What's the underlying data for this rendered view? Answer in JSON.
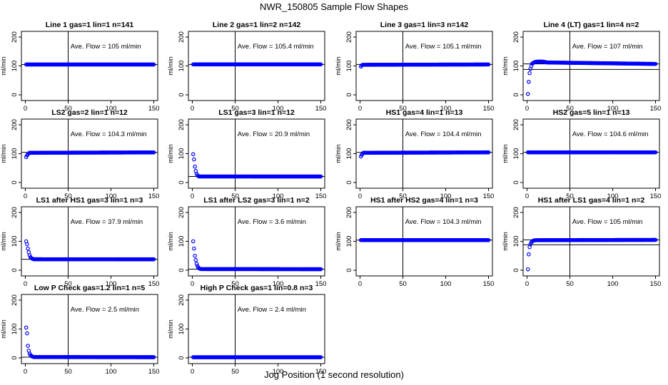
{
  "title": "NWR_150805  Sample Flow Shapes",
  "xlabel": "Jog Position (1 second resolution)",
  "chart_data": [
    {
      "type": "scatter",
      "title": "Line 1 gas=1 lin=1 n=141",
      "ylabel": "ml/min",
      "annotation": "Ave. Flow =  105  ml/min",
      "xlim": [
        0,
        150
      ],
      "ylim": [
        0,
        200
      ],
      "xticks": [
        0,
        50,
        100,
        150
      ],
      "yticks": [
        0,
        100,
        200
      ],
      "vline": 50,
      "hlines": [
        105
      ],
      "color": "#0000ff",
      "series": [
        {
          "x": [
            1,
            150
          ],
          "y": [
            105,
            105
          ]
        }
      ]
    },
    {
      "type": "scatter",
      "title": "Line 2 gas=1 lin=2 n=142",
      "ylabel": "ml/min",
      "annotation": "Ave. Flow =  105.4  ml/min",
      "xlim": [
        0,
        150
      ],
      "ylim": [
        0,
        200
      ],
      "xticks": [
        0,
        50,
        100,
        150
      ],
      "yticks": [
        0,
        100,
        200
      ],
      "vline": 50,
      "hlines": [
        105.4
      ],
      "color": "#0000ff",
      "series": [
        {
          "x": [
            1,
            150
          ],
          "y": [
            105.4,
            105.4
          ]
        }
      ]
    },
    {
      "type": "scatter",
      "title": "Line 3 gas=1 lin=3 n=142",
      "ylabel": "ml/min",
      "annotation": "Ave. Flow =  105.1  ml/min",
      "xlim": [
        0,
        150
      ],
      "ylim": [
        0,
        200
      ],
      "xticks": [
        0,
        50,
        100,
        150
      ],
      "yticks": [
        0,
        100,
        200
      ],
      "vline": 50,
      "hlines": [
        105.1
      ],
      "color": "#0000ff",
      "series": [
        {
          "x": [
            1,
            2,
            3,
            150
          ],
          "y": [
            98,
            102,
            104,
            105.1
          ]
        }
      ]
    },
    {
      "type": "scatter",
      "title": "Line 4 (LT) gas=1 lin=4 n=2",
      "ylabel": "ml/min",
      "annotation": "Ave. Flow =  107  ml/min",
      "xlim": [
        0,
        150
      ],
      "ylim": [
        0,
        200
      ],
      "xticks": [
        0,
        50,
        100,
        150
      ],
      "yticks": [
        0,
        100,
        200
      ],
      "vline": 50,
      "hlines": [
        107,
        88
      ],
      "color": "#0000ff",
      "series": [
        {
          "x": [
            1,
            2,
            3,
            4,
            5,
            6,
            8,
            10,
            12,
            14,
            16,
            18,
            20,
            22,
            24,
            150
          ],
          "y": [
            3,
            45,
            75,
            90,
            100,
            108,
            112,
            114,
            115,
            115,
            115,
            115,
            114,
            113,
            112,
            107
          ]
        }
      ]
    },
    {
      "type": "scatter",
      "title": "LS2 gas=2 lin=1 n=12",
      "ylabel": "ml/min",
      "annotation": "Ave. Flow =  104.3  ml/min",
      "xlim": [
        0,
        150
      ],
      "ylim": [
        0,
        200
      ],
      "xticks": [
        0,
        50,
        100,
        150
      ],
      "yticks": [
        0,
        100,
        200
      ],
      "vline": 50,
      "hlines": [
        104.3
      ],
      "color": "#0000ff",
      "series": [
        {
          "x": [
            1,
            2,
            3,
            4,
            5,
            150
          ],
          "y": [
            88,
            94,
            98,
            101,
            103,
            104.3
          ]
        }
      ]
    },
    {
      "type": "scatter",
      "title": "LS1 gas=3 lin=1 n=12",
      "ylabel": "ml/min",
      "annotation": "Ave. Flow =  20.9  ml/min",
      "xlim": [
        0,
        150
      ],
      "ylim": [
        0,
        200
      ],
      "xticks": [
        0,
        50,
        100,
        150
      ],
      "yticks": [
        0,
        100,
        200
      ],
      "vline": 50,
      "hlines": [
        20.9
      ],
      "color": "#0000ff",
      "series": [
        {
          "x": [
            1,
            2,
            3,
            4,
            5,
            6,
            7,
            8,
            150
          ],
          "y": [
            98,
            80,
            55,
            40,
            30,
            25,
            22,
            21,
            20.9
          ]
        }
      ]
    },
    {
      "type": "scatter",
      "title": "HS1 gas=4 lin=1 n=13",
      "ylabel": "ml/min",
      "annotation": "Ave. Flow =  104.4  ml/min",
      "xlim": [
        0,
        150
      ],
      "ylim": [
        0,
        200
      ],
      "xticks": [
        0,
        50,
        100,
        150
      ],
      "yticks": [
        0,
        100,
        200
      ],
      "vline": 50,
      "hlines": [
        104.4
      ],
      "color": "#0000ff",
      "series": [
        {
          "x": [
            1,
            2,
            3,
            4,
            150
          ],
          "y": [
            90,
            96,
            100,
            103,
            104.4
          ]
        }
      ]
    },
    {
      "type": "scatter",
      "title": "HS2 gas=5 lin=1 n=13",
      "ylabel": "ml/min",
      "annotation": "Ave. Flow =  104.6  ml/min",
      "xlim": [
        0,
        150
      ],
      "ylim": [
        0,
        200
      ],
      "xticks": [
        0,
        50,
        100,
        150
      ],
      "yticks": [
        0,
        100,
        200
      ],
      "vline": 50,
      "hlines": [
        104.6
      ],
      "color": "#0000ff",
      "series": [
        {
          "x": [
            1,
            150
          ],
          "y": [
            104.6,
            104.6
          ]
        }
      ]
    },
    {
      "type": "scatter",
      "title": "LS1 after HS1 gas=3 lin=1 n=3",
      "ylabel": "ml/min",
      "annotation": "Ave. Flow =  37.9  ml/min",
      "xlim": [
        0,
        150
      ],
      "ylim": [
        0,
        200
      ],
      "xticks": [
        0,
        50,
        100,
        150
      ],
      "yticks": [
        0,
        100,
        200
      ],
      "vline": 50,
      "hlines": [
        37.9
      ],
      "color": "#0000ff",
      "series": [
        {
          "x": [
            1,
            2,
            3,
            4,
            5,
            6,
            7,
            8,
            9,
            10,
            150
          ],
          "y": [
            100,
            90,
            75,
            62,
            52,
            45,
            42,
            40,
            39,
            38,
            37.9
          ]
        }
      ]
    },
    {
      "type": "scatter",
      "title": "LS1 after LS2 gas=3 lin=1 n=2",
      "ylabel": "ml/min",
      "annotation": "Ave. Flow =  3.6  ml/min",
      "xlim": [
        0,
        150
      ],
      "ylim": [
        0,
        200
      ],
      "xticks": [
        0,
        50,
        100,
        150
      ],
      "yticks": [
        0,
        100,
        200
      ],
      "vline": 50,
      "hlines": [
        3.6
      ],
      "color": "#0000ff",
      "series": [
        {
          "x": [
            1,
            2,
            3,
            4,
            5,
            6,
            7,
            8,
            9,
            10,
            150
          ],
          "y": [
            100,
            75,
            50,
            35,
            22,
            14,
            9,
            6,
            5,
            4,
            3.6
          ]
        }
      ]
    },
    {
      "type": "scatter",
      "title": "HS1 after HS2 gas=4 lin=1 n=3",
      "ylabel": "ml/min",
      "annotation": "Ave. Flow =  104.3  ml/min",
      "xlim": [
        0,
        150
      ],
      "ylim": [
        0,
        200
      ],
      "xticks": [
        0,
        50,
        100,
        150
      ],
      "yticks": [
        0,
        100,
        200
      ],
      "vline": 50,
      "hlines": [
        104.3
      ],
      "color": "#0000ff",
      "series": [
        {
          "x": [
            1,
            150
          ],
          "y": [
            104.3,
            104.3
          ]
        }
      ]
    },
    {
      "type": "scatter",
      "title": "HS1 after LS1 gas=4 lin=1 n=2",
      "ylabel": "ml/min",
      "annotation": "Ave. Flow =  105  ml/min",
      "xlim": [
        0,
        150
      ],
      "ylim": [
        0,
        200
      ],
      "xticks": [
        0,
        50,
        100,
        150
      ],
      "yticks": [
        0,
        100,
        200
      ],
      "vline": 50,
      "hlines": [
        105,
        88
      ],
      "color": "#0000ff",
      "series": [
        {
          "x": [
            1,
            2,
            3,
            4,
            5,
            6,
            7,
            8,
            10,
            150
          ],
          "y": [
            3,
            55,
            80,
            90,
            96,
            100,
            102,
            103,
            104,
            105
          ]
        }
      ]
    },
    {
      "type": "scatter",
      "title": "Low P Check gas=1.2 lin=1 n=5",
      "ylabel": "ml/min",
      "annotation": "Ave. Flow =  2.5  ml/min",
      "xlim": [
        0,
        150
      ],
      "ylim": [
        0,
        200
      ],
      "xticks": [
        0,
        50,
        100,
        150
      ],
      "yticks": [
        0,
        100,
        200
      ],
      "vline": 50,
      "hlines": [
        2.5
      ],
      "color": "#0000ff",
      "series": [
        {
          "x": [
            1,
            2,
            3,
            4,
            5,
            6,
            7,
            8,
            9,
            10,
            11,
            12,
            150
          ],
          "y": [
            105,
            85,
            42,
            25,
            15,
            10,
            7,
            5,
            4,
            3,
            3,
            3,
            2.5
          ]
        }
      ]
    },
    {
      "type": "scatter",
      "title": "High P Check gas=1 lin=0.8 n=3",
      "ylabel": "ml/min",
      "annotation": "Ave. Flow =  2.4  ml/min",
      "xlim": [
        0,
        150
      ],
      "ylim": [
        0,
        200
      ],
      "xticks": [
        0,
        50,
        100,
        150
      ],
      "yticks": [
        0,
        100,
        200
      ],
      "vline": 50,
      "hlines": [
        2.4
      ],
      "color": "#0000ff",
      "series": [
        {
          "x": [
            1,
            150
          ],
          "y": [
            2.4,
            2.4
          ]
        }
      ]
    }
  ]
}
